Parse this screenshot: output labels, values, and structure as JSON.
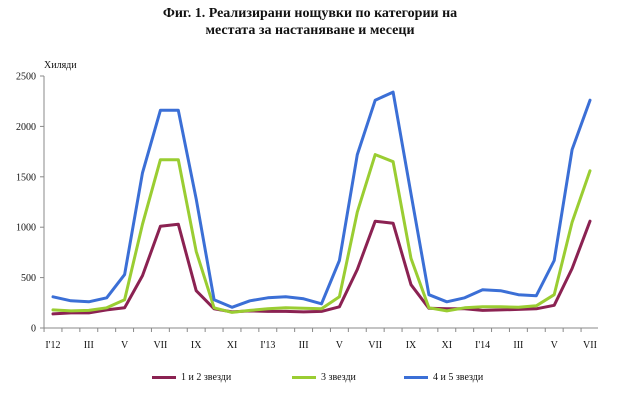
{
  "title_line1": "Фиг. 1. Реализирани нощувки по категории на",
  "title_line2": "местата за настаняване и месеци",
  "chart_data": {
    "type": "line",
    "title": "Фиг. 1. Реализирани нощувки по категории на местата за настаняване и месеци",
    "ylabel": "Хиляди",
    "ylim": [
      0,
      2500
    ],
    "yticks": [
      0,
      500,
      1000,
      1500,
      2000,
      2500
    ],
    "grid": false,
    "legend_position": "bottom",
    "x_tick_labels": [
      "I'12",
      "III",
      "V",
      "VII",
      "IX",
      "XI",
      "I'13",
      "III",
      "V",
      "VII",
      "IX",
      "XI",
      "I'14",
      "III",
      "V",
      "VII"
    ],
    "x_tick_positions": [
      1,
      3,
      5,
      7,
      9,
      11,
      13,
      15,
      17,
      19,
      21,
      23,
      25,
      27,
      29,
      31
    ],
    "x": [
      1,
      2,
      3,
      4,
      5,
      6,
      7,
      8,
      9,
      10,
      11,
      12,
      13,
      14,
      15,
      16,
      17,
      18,
      19,
      20,
      21,
      22,
      23,
      24,
      25,
      26,
      27,
      28,
      29,
      30,
      31
    ],
    "series": [
      {
        "name": "1 и 2 звезди",
        "color": "#8b2252",
        "values": [
          140,
          150,
          150,
          180,
          200,
          520,
          1010,
          1030,
          370,
          190,
          160,
          170,
          165,
          165,
          160,
          165,
          210,
          580,
          1060,
          1040,
          430,
          195,
          190,
          190,
          175,
          180,
          185,
          190,
          225,
          590,
          1060
        ]
      },
      {
        "name": "3 звезди",
        "color": "#9acd32",
        "values": [
          180,
          170,
          175,
          200,
          280,
          1030,
          1670,
          1670,
          760,
          200,
          155,
          175,
          190,
          200,
          195,
          190,
          310,
          1150,
          1720,
          1650,
          690,
          200,
          170,
          200,
          210,
          210,
          205,
          220,
          330,
          1050,
          1560
        ]
      },
      {
        "name": "4 и 5 звезди",
        "color": "#3b6fd6",
        "values": [
          310,
          270,
          260,
          300,
          530,
          1540,
          2160,
          2160,
          1280,
          280,
          205,
          270,
          300,
          310,
          290,
          240,
          670,
          1720,
          2260,
          2340,
          1330,
          330,
          260,
          300,
          380,
          370,
          330,
          320,
          670,
          1770,
          2260
        ]
      }
    ]
  }
}
